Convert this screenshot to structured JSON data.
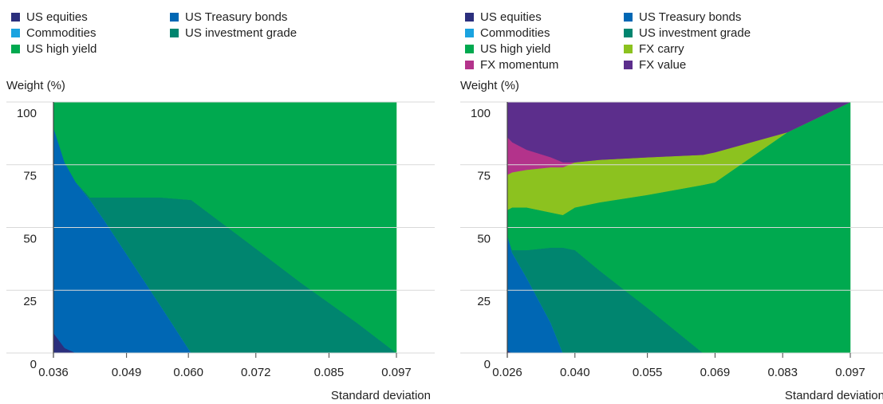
{
  "chart_data": [
    {
      "type": "area",
      "stacked": true,
      "ylabel": "Weight (%)",
      "xlabel": "Standard deviation",
      "ylim": [
        0,
        100
      ],
      "yticks": [
        0,
        25,
        50,
        75,
        100
      ],
      "grid": true,
      "xlim": [
        0.036,
        0.097
      ],
      "xticks": [
        0.036,
        0.049,
        {
          "value": 0.06,
          "label": "0.060"
        },
        0.072,
        0.085,
        0.097
      ],
      "x": [
        0.036,
        0.038,
        {
          "value": 0.04,
          "label": "0.040"
        },
        0.0425,
        0.045,
        0.05,
        0.055,
        0.0605,
        0.07,
        0.08,
        0.09,
        0.097
      ],
      "series": [
        {
          "name": "US equities",
          "color": "#2b2f7d",
          "values": [
            8,
            2,
            0,
            0,
            0,
            0,
            0,
            0,
            0,
            0,
            0,
            0
          ]
        },
        {
          "name": "US Treasury bonds",
          "color": "#0067b4",
          "values": [
            82,
            74,
            68,
            61,
            53,
            36,
            19,
            0,
            0,
            0,
            0,
            0
          ]
        },
        {
          "name": "Commodities",
          "color": "#1aa3e0",
          "values": [
            0,
            0,
            0,
            0,
            0,
            0,
            0,
            0,
            0,
            0,
            0,
            0
          ]
        },
        {
          "name": "US investment grade",
          "color": "#00856f",
          "values": [
            0,
            0,
            0,
            1,
            9,
            26,
            43,
            61,
            45,
            28,
            12,
            0
          ]
        },
        {
          "name": "US high yield",
          "color": "#00a94f",
          "values": [
            10,
            24,
            32,
            38,
            38,
            38,
            38,
            39,
            55,
            72,
            88,
            100
          ]
        }
      ]
    },
    {
      "type": "area",
      "stacked": true,
      "ylabel": "Weight (%)",
      "xlabel": "Standard deviation",
      "ylim": [
        0,
        100
      ],
      "yticks": [
        0,
        25,
        50,
        75,
        100
      ],
      "grid": true,
      "xlim": [
        0.026,
        0.097
      ],
      "xticks": [
        0.026,
        {
          "value": 0.04,
          "label": "0.040"
        },
        0.055,
        0.069,
        0.083,
        0.097
      ],
      "x": [
        0.026,
        0.027,
        0.03,
        0.035,
        0.0375,
        0.04,
        0.045,
        0.055,
        0.0665,
        0.069,
        0.084,
        0.097
      ],
      "series": [
        {
          "name": "US equities",
          "color": "#2b2f7d",
          "values": [
            1,
            0,
            0,
            0,
            0,
            0,
            0,
            0,
            0,
            0,
            0,
            0
          ]
        },
        {
          "name": "US Treasury bonds",
          "color": "#0067b4",
          "values": [
            46,
            40,
            30,
            12,
            0,
            0,
            0,
            0,
            0,
            0,
            0,
            0
          ]
        },
        {
          "name": "Commodities",
          "color": "#1aa3e0",
          "values": [
            0,
            0,
            0,
            0,
            0,
            0,
            0,
            0,
            0,
            0,
            0,
            0
          ]
        },
        {
          "name": "US investment grade",
          "color": "#00856f",
          "values": [
            0,
            1,
            11,
            30,
            42,
            41,
            33,
            18,
            0,
            0,
            0,
            0
          ]
        },
        {
          "name": "US high yield",
          "color": "#00a94f",
          "values": [
            10,
            17,
            17,
            14,
            13,
            17,
            27,
            45,
            67,
            68,
            88,
            100
          ]
        },
        {
          "name": "FX carry",
          "color": "#8cc21f",
          "values": [
            14,
            14,
            15,
            18,
            19,
            18,
            17,
            15,
            12,
            12,
            0,
            0
          ]
        },
        {
          "name": "FX momentum",
          "color": "#b3338b",
          "values": [
            15,
            12,
            8,
            4,
            2,
            0,
            0,
            0,
            0,
            0,
            0,
            0
          ]
        },
        {
          "name": "FX value",
          "color": "#5c2e8c",
          "values": [
            14,
            16,
            19,
            22,
            24,
            24,
            23,
            22,
            21,
            20,
            12,
            0
          ]
        }
      ]
    }
  ]
}
